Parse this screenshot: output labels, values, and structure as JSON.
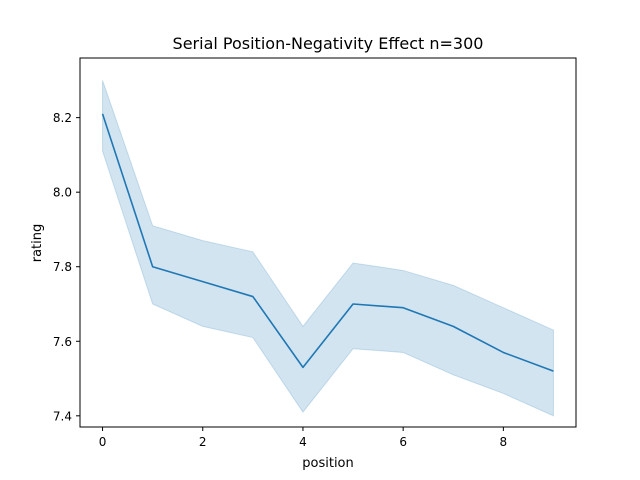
{
  "chart_data": {
    "type": "line",
    "title": "Serial Position-Negativity Effect n=300",
    "xlabel": "position",
    "ylabel": "rating",
    "xlim": [
      -0.45,
      9.45
    ],
    "ylim": [
      7.37,
      8.36
    ],
    "xticks": [
      0,
      2,
      4,
      6,
      8
    ],
    "xtick_labels": [
      "0",
      "2",
      "4",
      "6",
      "8"
    ],
    "yticks": [
      7.4,
      7.6,
      7.8,
      8.0,
      8.2
    ],
    "ytick_labels": [
      "7.4",
      "7.6",
      "7.8",
      "8.0",
      "8.2"
    ],
    "grid": false,
    "series": [
      {
        "x": [
          0,
          1,
          2,
          3,
          4,
          5,
          6,
          7,
          8,
          9
        ],
        "y": [
          8.21,
          7.8,
          7.76,
          7.72,
          7.53,
          7.7,
          7.69,
          7.64,
          7.57,
          7.52
        ],
        "ci_lower": [
          8.11,
          7.7,
          7.64,
          7.61,
          7.41,
          7.58,
          7.57,
          7.51,
          7.46,
          7.4
        ],
        "ci_upper": [
          8.3,
          7.91,
          7.87,
          7.84,
          7.64,
          7.81,
          7.79,
          7.75,
          7.69,
          7.63
        ],
        "color": "#1f77b4",
        "band_color": "#1f77b4"
      }
    ]
  }
}
